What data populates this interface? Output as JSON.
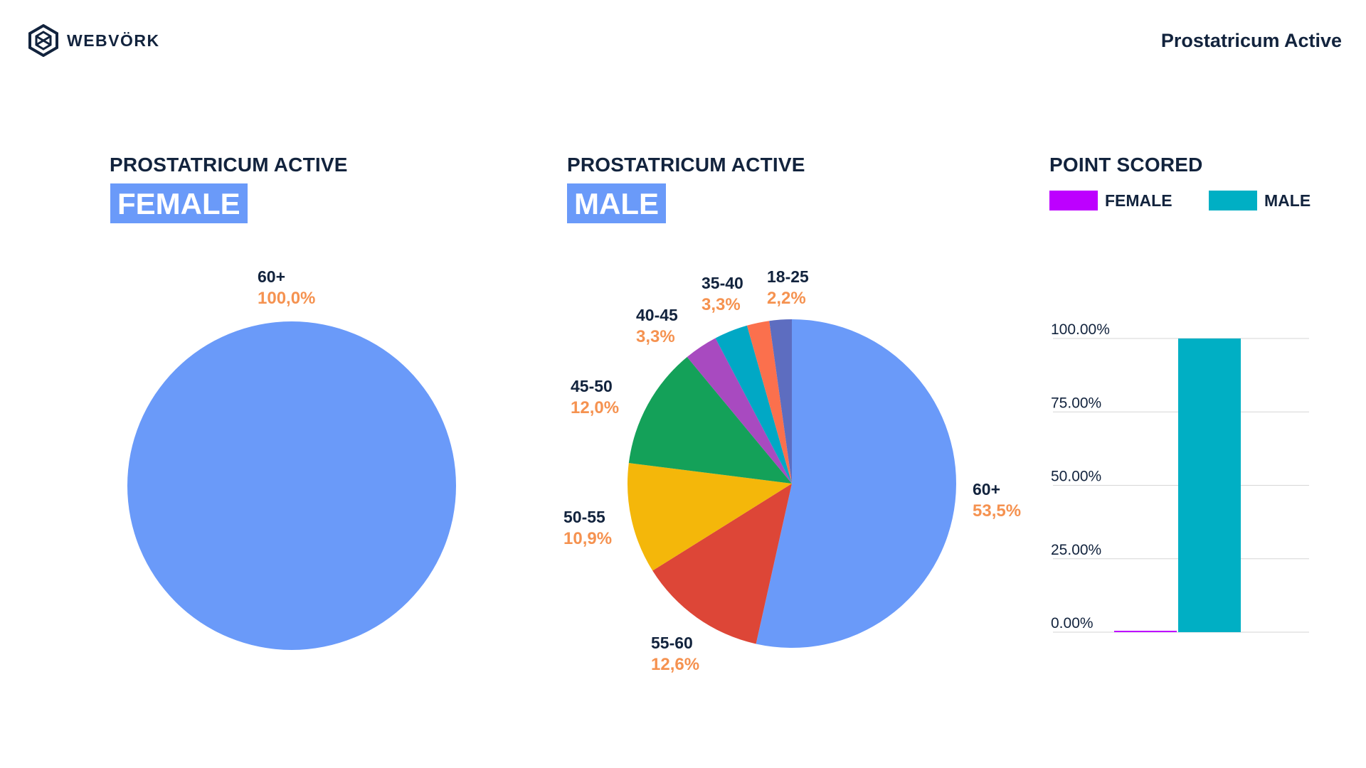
{
  "header": {
    "brand": "WEBVÖRK",
    "logo_icon": "webvork-hex-logo-icon",
    "product": "Prostatricum Active"
  },
  "female_panel": {
    "title": "PROSTATRICUM ACTIVE",
    "badge": "FEMALE"
  },
  "male_panel": {
    "title": "PROSTATRICUM ACTIVE",
    "badge": "MALE"
  },
  "points_panel": {
    "title": "POINT SCORED",
    "legend": [
      {
        "label": "FEMALE",
        "color": "#bd00ff"
      },
      {
        "label": "MALE",
        "color": "#00afc4"
      }
    ]
  },
  "chart_data": [
    {
      "type": "pie",
      "id": "female",
      "slices": [
        {
          "label": "60+",
          "value_text": "100,0%",
          "value": 100.0,
          "color": "#6a9af9"
        }
      ]
    },
    {
      "type": "pie",
      "id": "male",
      "slices": [
        {
          "label": "60+",
          "value_text": "53,5%",
          "value": 53.5,
          "color": "#6a9af9"
        },
        {
          "label": "55-60",
          "value_text": "12,6%",
          "value": 12.6,
          "color": "#dd4637"
        },
        {
          "label": "50-55",
          "value_text": "10,9%",
          "value": 10.9,
          "color": "#f4b70a"
        },
        {
          "label": "45-50",
          "value_text": "12,0%",
          "value": 12.0,
          "color": "#14a159"
        },
        {
          "label": "40-45",
          "value_text": "3,3%",
          "value": 3.3,
          "color": "#a84ac0"
        },
        {
          "label": "35-40",
          "value_text": "3,3%",
          "value": 3.3,
          "color": "#01a8c5"
        },
        {
          "label": "18-25",
          "value_text": "2,2%",
          "value": 2.2,
          "color": "#fb704d"
        },
        {
          "label": "",
          "value_text": "",
          "value": 2.2,
          "color": "#5d6dc0"
        }
      ]
    },
    {
      "type": "bar",
      "id": "points",
      "categories": [
        "FEMALE",
        "MALE"
      ],
      "values": [
        0.3,
        100
      ],
      "colors": [
        "#bd00ff",
        "#00afc4"
      ],
      "ylim": [
        0,
        100
      ],
      "yticks": [
        "0.00%",
        "25.00%",
        "50.00%",
        "75.00%",
        "100.00%"
      ],
      "grid": true
    }
  ]
}
